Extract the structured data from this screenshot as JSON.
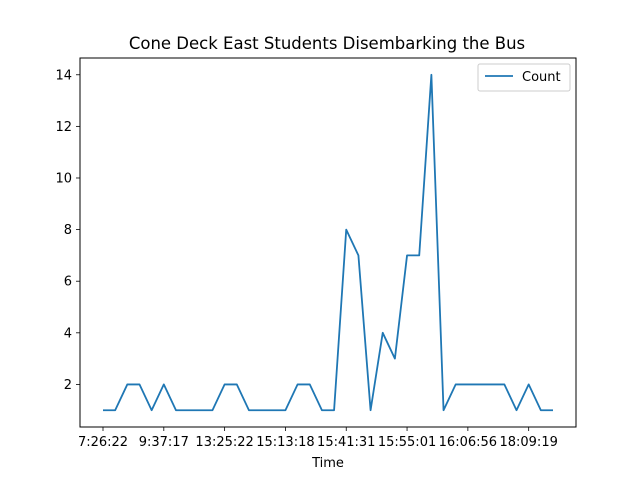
{
  "chart_data": {
    "type": "line",
    "title": "Cone Deck East Students Disembarking the Bus",
    "xlabel": "Time",
    "ylabel": "",
    "x_tick_labels": [
      "7:26:22",
      "9:37:17",
      "13:25:22",
      "15:13:18",
      "15:41:31",
      "15:55:01",
      "16:06:56",
      "18:09:19"
    ],
    "x_tick_indices": [
      0,
      5,
      10,
      15,
      20,
      25,
      30,
      35
    ],
    "y_ticks": [
      2,
      4,
      6,
      8,
      10,
      12,
      14
    ],
    "ylim": [
      0.35,
      14.65
    ],
    "legend_position": "top-right",
    "grid": false,
    "series": [
      {
        "name": "Count",
        "color": "#1f77b4",
        "values": [
          1,
          1,
          2,
          2,
          1,
          2,
          1,
          1,
          1,
          1,
          2,
          2,
          1,
          1,
          1,
          1,
          2,
          2,
          1,
          1,
          8,
          7,
          1,
          4,
          3,
          7,
          7,
          14,
          1,
          2,
          2,
          2,
          2,
          2,
          1,
          2,
          1,
          1
        ]
      }
    ]
  }
}
